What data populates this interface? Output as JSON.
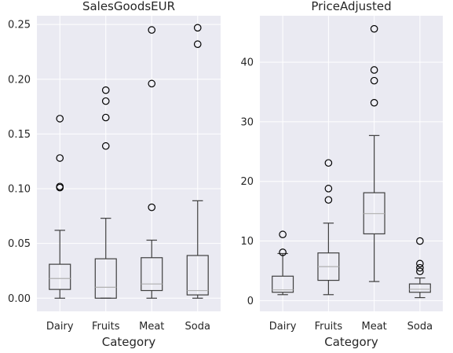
{
  "chart_data": [
    {
      "type": "box",
      "title": "SalesGoodsEUR",
      "xlabel": "Category",
      "ylabel": "",
      "categories": [
        "Dairy",
        "Fruits",
        "Meat",
        "Soda"
      ],
      "ylim": [
        -0.012,
        0.258
      ],
      "yticks": [
        0.0,
        0.05,
        0.1,
        0.15,
        0.2,
        0.25
      ],
      "ytick_labels": [
        "0.00",
        "0.05",
        "0.10",
        "0.15",
        "0.20",
        "0.25"
      ],
      "grid": true,
      "boxes": [
        {
          "whisker_low": 0.0,
          "q1": 0.008,
          "median": 0.018,
          "q3": 0.031,
          "whisker_high": 0.062,
          "outliers": [
            0.101,
            0.102,
            0.128,
            0.164
          ]
        },
        {
          "whisker_low": 0.0,
          "q1": 0.0,
          "median": 0.01,
          "q3": 0.036,
          "whisker_high": 0.073,
          "outliers": [
            0.139,
            0.165,
            0.18,
            0.19
          ]
        },
        {
          "whisker_low": 0.0,
          "q1": 0.007,
          "median": 0.013,
          "q3": 0.037,
          "whisker_high": 0.053,
          "outliers": [
            0.083,
            0.196,
            0.245
          ]
        },
        {
          "whisker_low": 0.0,
          "q1": 0.003,
          "median": 0.007,
          "q3": 0.039,
          "whisker_high": 0.089,
          "outliers": [
            0.232,
            0.247
          ]
        }
      ]
    },
    {
      "type": "box",
      "title": "PriceAdjusted",
      "xlabel": "Category",
      "ylabel": "",
      "categories": [
        "Dairy",
        "Fruits",
        "Meat",
        "Soda"
      ],
      "ylim": [
        -1.8,
        47.8
      ],
      "yticks": [
        0,
        10,
        20,
        30,
        40
      ],
      "ytick_labels": [
        "0",
        "10",
        "20",
        "30",
        "40"
      ],
      "grid": true,
      "boxes": [
        {
          "whisker_low": 1.0,
          "q1": 1.4,
          "median": 1.8,
          "q3": 4.1,
          "whisker_high": 7.9,
          "outliers": [
            8.1,
            11.1
          ]
        },
        {
          "whisker_low": 1.0,
          "q1": 3.4,
          "median": 5.7,
          "q3": 8.0,
          "whisker_high": 13.0,
          "outliers": [
            16.9,
            18.8,
            23.1
          ]
        },
        {
          "whisker_low": 3.2,
          "q1": 11.2,
          "median": 14.6,
          "q3": 18.1,
          "whisker_high": 27.7,
          "outliers": [
            33.2,
            36.9,
            38.7,
            45.6
          ]
        },
        {
          "whisker_low": 0.5,
          "q1": 1.4,
          "median": 1.9,
          "q3": 2.8,
          "whisker_high": 3.8,
          "outliers": [
            4.9,
            5.5,
            6.2,
            10.0
          ]
        }
      ]
    }
  ],
  "colors": {
    "axes_background": "#eaeaf2",
    "grid": "#ffffff",
    "box_line": "#3f3f3f",
    "median_line": "#b0b0b0",
    "text": "#262626"
  }
}
